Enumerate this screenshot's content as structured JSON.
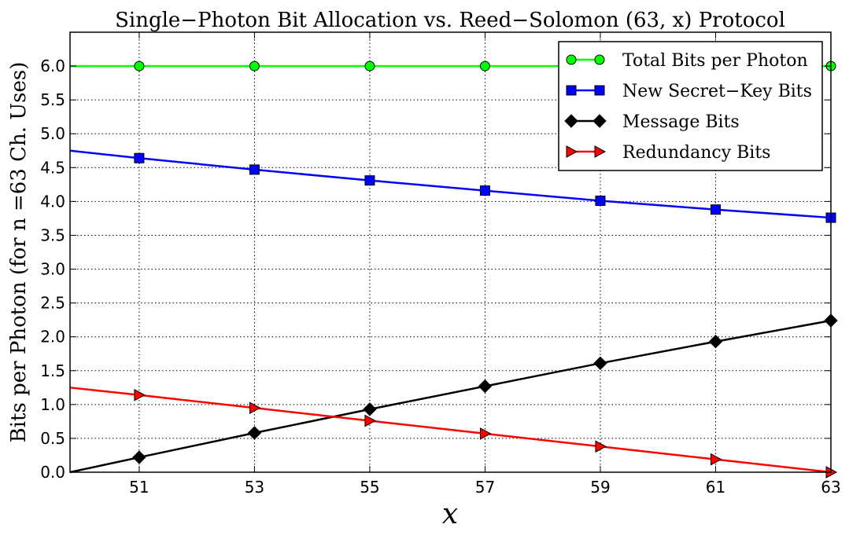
{
  "chart_data": {
    "type": "line",
    "title": "Single−Photon Bit Allocation vs. Reed−Solomon (63, x) Protocol",
    "xlabel": "x",
    "ylabel": "Bits per Photon (for n =63 Ch. Uses)",
    "xlim": [
      49.8,
      63
    ],
    "ylim": [
      0,
      6.5
    ],
    "x_ticks": [
      "51",
      "53",
      "55",
      "57",
      "59",
      "61",
      "63"
    ],
    "y_ticks": [
      "0.0",
      "0.5",
      "1.0",
      "1.5",
      "2.0",
      "2.5",
      "3.0",
      "3.5",
      "4.0",
      "4.5",
      "5.0",
      "5.5",
      "6.0"
    ],
    "grid": true,
    "legend_position": "top-right",
    "series": [
      {
        "name": "Total Bits per Photon",
        "color": "#00ff00",
        "marker": "circle",
        "line_x": [
          49.8,
          63
        ],
        "line_y": [
          6.0,
          6.0
        ],
        "x": [
          51,
          53,
          55,
          57,
          59,
          61,
          63
        ],
        "y": [
          6.0,
          6.0,
          6.0,
          6.0,
          6.0,
          6.0,
          6.0
        ]
      },
      {
        "name": "New Secret−Key Bits",
        "color": "#0000ff",
        "marker": "square",
        "line_x": [
          49.8,
          51,
          53,
          55,
          57,
          59,
          61,
          63
        ],
        "line_y": [
          4.75,
          4.64,
          4.47,
          4.31,
          4.16,
          4.01,
          3.88,
          3.76
        ],
        "x": [
          51,
          53,
          55,
          57,
          59,
          61,
          63
        ],
        "y": [
          4.64,
          4.47,
          4.31,
          4.16,
          4.01,
          3.88,
          3.76
        ]
      },
      {
        "name": "Message Bits",
        "color": "#000000",
        "marker": "diamond",
        "line_x": [
          49.8,
          51,
          53,
          55,
          57,
          59,
          61,
          63
        ],
        "line_y": [
          0.0,
          0.22,
          0.58,
          0.93,
          1.27,
          1.61,
          1.93,
          2.24
        ],
        "x": [
          51,
          53,
          55,
          57,
          59,
          61,
          63
        ],
        "y": [
          0.22,
          0.58,
          0.93,
          1.27,
          1.61,
          1.93,
          2.24
        ]
      },
      {
        "name": "Redundancy Bits",
        "color": "#ff0000",
        "marker": "triangle-right",
        "line_x": [
          49.8,
          51,
          53,
          55,
          57,
          59,
          61,
          63
        ],
        "line_y": [
          1.25,
          1.14,
          0.95,
          0.76,
          0.57,
          0.38,
          0.19,
          0.0
        ],
        "x": [
          51,
          53,
          55,
          57,
          59,
          61,
          63
        ],
        "y": [
          1.14,
          0.95,
          0.76,
          0.57,
          0.38,
          0.19,
          0.0
        ]
      }
    ]
  }
}
